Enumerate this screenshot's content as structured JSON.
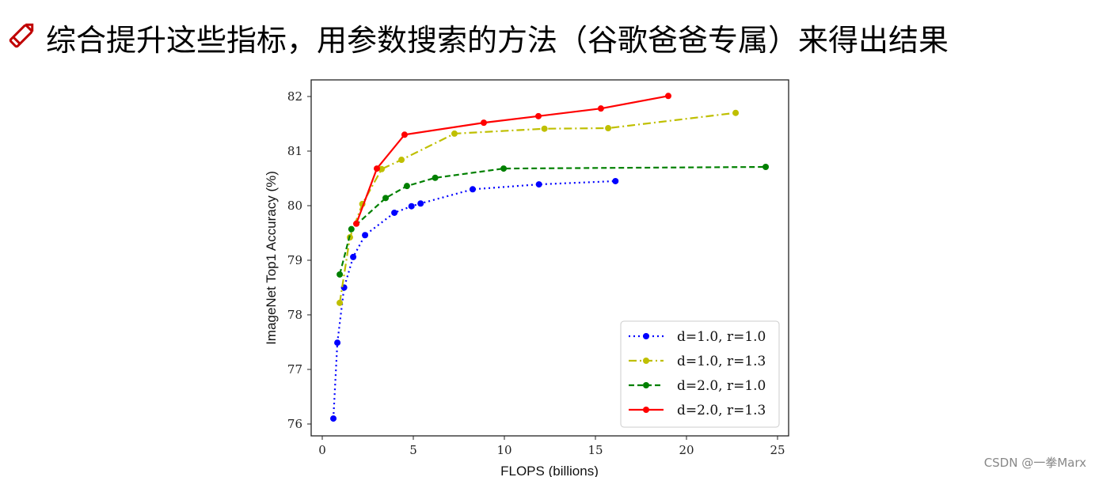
{
  "slide": {
    "title": "综合提升这些指标，用参数搜索的方法（谷歌爸爸专属）来得出结果",
    "title_icon": "pencil-icon",
    "watermark": "CSDN @一拳Marx"
  },
  "chart_data": {
    "type": "line",
    "title": "",
    "xlabel": "FLOPS (billions)",
    "ylabel": "ImageNet Top1 Accuracy (%)",
    "xlim": [
      -0.6,
      25.5
    ],
    "ylim": [
      75.8,
      82.3
    ],
    "xticks": [
      "0",
      "5",
      "10",
      "15",
      "20",
      "25"
    ],
    "yticks": [
      "76",
      "77",
      "78",
      "79",
      "80",
      "81",
      "82"
    ],
    "grid": false,
    "legend_position": "bottom-right",
    "series": [
      {
        "name": "d=1.0, r=1.0",
        "color": "#0000ff",
        "dash": "dotted",
        "x": [
          0.61,
          0.83,
          1.2,
          1.7,
          2.35,
          3.96,
          4.9,
          5.4,
          8.26,
          11.9,
          16.1
        ],
        "y": [
          76.1,
          77.49,
          78.5,
          79.06,
          79.46,
          79.87,
          79.99,
          80.04,
          80.3,
          80.39,
          80.45
        ]
      },
      {
        "name": "d=1.0, r=1.3",
        "color": "#bfbf00",
        "dash": "dashdot",
        "x": [
          0.96,
          1.52,
          2.2,
          3.26,
          4.35,
          7.26,
          12.2,
          15.7,
          22.7
        ],
        "y": [
          78.22,
          79.42,
          80.03,
          80.67,
          80.84,
          81.32,
          81.41,
          81.42,
          81.7
        ]
      },
      {
        "name": "d=2.0, r=1.0",
        "color": "#008000",
        "dash": "dashed",
        "x": [
          0.96,
          1.6,
          3.48,
          4.65,
          6.2,
          9.96,
          24.35
        ],
        "y": [
          78.74,
          79.57,
          80.14,
          80.36,
          80.51,
          80.68,
          80.71
        ]
      },
      {
        "name": "d=2.0, r=1.3",
        "color": "#ff0000",
        "dash": "solid",
        "x": [
          1.87,
          3.0,
          4.52,
          8.87,
          11.87,
          15.3,
          19.0
        ],
        "y": [
          79.67,
          80.68,
          81.3,
          81.52,
          81.64,
          81.78,
          82.01
        ]
      }
    ]
  }
}
